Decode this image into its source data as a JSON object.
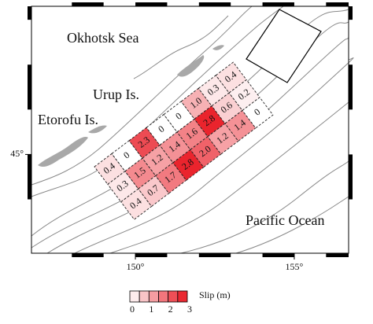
{
  "map": {
    "xlim": [
      146.73,
      156.71
    ],
    "ylim": [
      42.8,
      48.3
    ],
    "xticks": [
      {
        "value": 150,
        "label": "150°"
      },
      {
        "value": 155,
        "label": "155°"
      }
    ],
    "yticks": [
      {
        "value": 45,
        "label": "45°"
      }
    ],
    "places": [
      "Okhotsk Sea",
      "Urup Is.",
      "Etorofu Is.",
      "Pacific Ocean"
    ],
    "slip": {
      "values": [
        [
          0.4,
          0,
          2.3,
          0,
          0,
          1.0,
          0.3,
          0.4
        ],
        [
          0.3,
          1.5,
          1.2,
          1.4,
          1.6,
          2.8,
          0.6,
          0.2
        ],
        [
          0.4,
          0.7,
          1.7,
          2.8,
          2.0,
          1.2,
          1.4,
          0
        ]
      ],
      "value_labels": [
        [
          "0.4",
          "0",
          "2.3",
          "0",
          "0",
          "1.0",
          "0.3",
          "0.4"
        ],
        [
          "0.3",
          "1.5",
          "1.2",
          "1.4",
          "1.6",
          "2.8",
          "0.6",
          "0.2"
        ],
        [
          "0.4",
          "0.7",
          "1.7",
          "2.8",
          "2.0",
          "1.2",
          "1.4",
          "0"
        ]
      ]
    },
    "colorbar": {
      "label": "Slip (m)",
      "ticks": [
        0,
        1,
        2,
        3
      ],
      "color": "#e8141e"
    }
  }
}
